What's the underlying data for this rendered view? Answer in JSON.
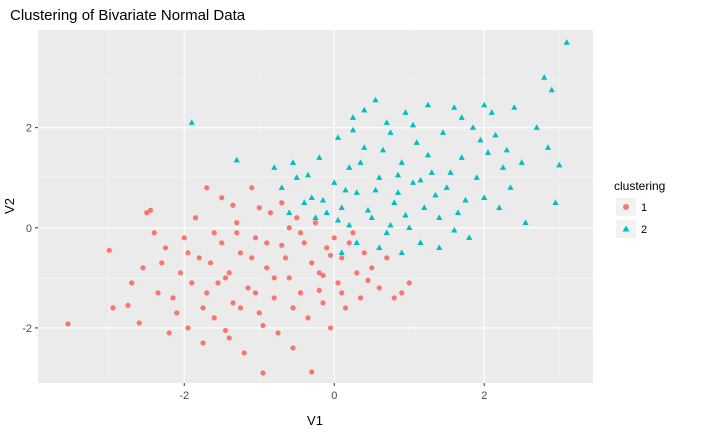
{
  "chart_data": {
    "type": "scatter",
    "title": "Clustering of Bivariate Normal Data",
    "xlabel": "V1",
    "ylabel": "V2",
    "xlim": [
      -3.95,
      3.45
    ],
    "ylim": [
      -3.1,
      3.95
    ],
    "x_ticks": [
      -2,
      0,
      2
    ],
    "y_ticks": [
      -2,
      0,
      2
    ],
    "x_tick_labels": [
      "-2",
      "0",
      "2"
    ],
    "y_tick_labels": [
      "-2",
      "0",
      "2"
    ],
    "grid": true,
    "legend": {
      "title": "clustering",
      "position": "right",
      "entries": [
        "1",
        "2"
      ]
    },
    "series": [
      {
        "name": "1",
        "color": "#f8766d",
        "marker": "circle",
        "points": [
          [
            -3.55,
            -1.92
          ],
          [
            -3.0,
            -0.45
          ],
          [
            -2.95,
            -1.6
          ],
          [
            -2.75,
            -1.55
          ],
          [
            -2.7,
            -1.1
          ],
          [
            -2.6,
            -1.9
          ],
          [
            -2.55,
            -0.8
          ],
          [
            -2.5,
            0.3
          ],
          [
            -2.45,
            0.35
          ],
          [
            -2.4,
            -0.1
          ],
          [
            -2.35,
            -1.3
          ],
          [
            -2.25,
            -0.4
          ],
          [
            -2.2,
            -2.1
          ],
          [
            -2.1,
            -1.7
          ],
          [
            -2.05,
            -0.9
          ],
          [
            -1.95,
            -2.0
          ],
          [
            -1.9,
            -1.1
          ],
          [
            -1.85,
            0.2
          ],
          [
            -1.8,
            -0.6
          ],
          [
            -1.75,
            -2.3
          ],
          [
            -1.7,
            -1.3
          ],
          [
            -1.65,
            -0.7
          ],
          [
            -1.6,
            -1.8
          ],
          [
            -1.5,
            0.6
          ],
          [
            -1.5,
            -0.3
          ],
          [
            -1.45,
            -1.0
          ],
          [
            -1.4,
            -2.2
          ],
          [
            -1.35,
            -1.5
          ],
          [
            -1.3,
            0.1
          ],
          [
            -1.25,
            -0.5
          ],
          [
            -1.2,
            -2.5
          ],
          [
            -1.15,
            -1.2
          ],
          [
            -1.1,
            0.8
          ],
          [
            -1.05,
            -0.2
          ],
          [
            -1.0,
            -1.7
          ],
          [
            -0.95,
            -2.9
          ],
          [
            -0.9,
            -0.8
          ],
          [
            -0.85,
            0.3
          ],
          [
            -0.8,
            -1.4
          ],
          [
            -0.75,
            -2.1
          ],
          [
            -0.7,
            0.5
          ],
          [
            -0.65,
            -0.6
          ],
          [
            -0.6,
            -1.0
          ],
          [
            -0.55,
            -2.4
          ],
          [
            -0.5,
            0.2
          ],
          [
            -0.45,
            -1.3
          ],
          [
            -0.4,
            -0.3
          ],
          [
            -0.35,
            -1.8
          ],
          [
            -0.3,
            -2.88
          ],
          [
            -0.25,
            0.1
          ],
          [
            -0.2,
            -0.9
          ],
          [
            -0.15,
            -1.5
          ],
          [
            -0.1,
            -0.4
          ],
          [
            -0.05,
            -2.0
          ],
          [
            0.0,
            -0.2
          ],
          [
            0.05,
            -1.1
          ],
          [
            0.1,
            -0.6
          ],
          [
            0.15,
            -1.6
          ],
          [
            0.2,
            -0.3
          ],
          [
            0.3,
            -0.9
          ],
          [
            0.35,
            -1.4
          ],
          [
            0.4,
            -0.5
          ],
          [
            0.5,
            -0.8
          ],
          [
            0.6,
            -1.2
          ],
          [
            0.7,
            -0.6
          ],
          [
            0.8,
            -1.4
          ],
          [
            0.9,
            -1.3
          ],
          [
            1.0,
            -1.1
          ],
          [
            -1.7,
            0.8
          ],
          [
            -2.0,
            -0.2
          ],
          [
            -1.3,
            -0.1
          ],
          [
            -0.6,
            0.0
          ],
          [
            0.25,
            -0.1
          ],
          [
            -0.9,
            -0.3
          ],
          [
            -1.1,
            -0.6
          ],
          [
            -1.4,
            -0.9
          ],
          [
            -0.3,
            -0.7
          ],
          [
            -2.15,
            -1.4
          ],
          [
            -1.55,
            -1.1
          ],
          [
            -0.8,
            -1.0
          ],
          [
            -0.45,
            -0.1
          ],
          [
            -1.0,
            0.4
          ],
          [
            -1.6,
            -0.1
          ],
          [
            -2.3,
            -0.7
          ],
          [
            -1.25,
            -1.6
          ],
          [
            -0.55,
            -1.6
          ],
          [
            0.1,
            -1.3
          ],
          [
            -0.15,
            -0.95
          ],
          [
            -1.95,
            -0.5
          ],
          [
            -1.35,
            0.45
          ],
          [
            -0.7,
            -0.35
          ],
          [
            -1.05,
            -1.3
          ],
          [
            -1.75,
            -1.6
          ],
          [
            -0.2,
            -1.25
          ],
          [
            -0.95,
            -1.95
          ],
          [
            -1.45,
            -2.05
          ],
          [
            0.45,
            -1.05
          ],
          [
            -0.05,
            -0.55
          ]
        ]
      },
      {
        "name": "2",
        "color": "#00bfc4",
        "marker": "triangle",
        "points": [
          [
            -1.9,
            2.1
          ],
          [
            -1.3,
            1.35
          ],
          [
            -0.8,
            1.2
          ],
          [
            -0.7,
            0.8
          ],
          [
            -0.5,
            1.0
          ],
          [
            -0.3,
            0.6
          ],
          [
            -0.2,
            1.4
          ],
          [
            -0.1,
            0.3
          ],
          [
            0.0,
            0.9
          ],
          [
            0.05,
            1.8
          ],
          [
            0.1,
            0.4
          ],
          [
            0.2,
            1.2
          ],
          [
            0.25,
            2.2
          ],
          [
            0.3,
            0.7
          ],
          [
            0.4,
            1.6
          ],
          [
            0.5,
            0.2
          ],
          [
            0.55,
            2.55
          ],
          [
            0.6,
            1.0
          ],
          [
            0.7,
            -0.1
          ],
          [
            0.75,
            1.9
          ],
          [
            0.8,
            0.5
          ],
          [
            0.9,
            1.3
          ],
          [
            0.95,
            2.3
          ],
          [
            1.0,
            0.0
          ],
          [
            1.05,
            0.9
          ],
          [
            1.1,
            1.7
          ],
          [
            1.2,
            0.4
          ],
          [
            1.25,
            2.45
          ],
          [
            1.3,
            1.1
          ],
          [
            1.4,
            0.2
          ],
          [
            1.45,
            1.9
          ],
          [
            1.5,
            0.8
          ],
          [
            1.6,
            2.4
          ],
          [
            1.65,
            0.3
          ],
          [
            1.7,
            1.4
          ],
          [
            1.8,
            -0.2
          ],
          [
            1.85,
            2.0
          ],
          [
            1.9,
            1.0
          ],
          [
            2.0,
            0.6
          ],
          [
            2.05,
            1.5
          ],
          [
            2.1,
            2.3
          ],
          [
            2.2,
            0.4
          ],
          [
            2.25,
            1.2
          ],
          [
            2.35,
            0.8
          ],
          [
            2.4,
            2.4
          ],
          [
            2.5,
            1.3
          ],
          [
            2.55,
            0.1
          ],
          [
            2.7,
            2.0
          ],
          [
            2.8,
            3.0
          ],
          [
            2.85,
            1.6
          ],
          [
            2.9,
            2.75
          ],
          [
            2.95,
            0.5
          ],
          [
            3.0,
            1.25
          ],
          [
            3.1,
            3.7
          ],
          [
            0.1,
            -0.5
          ],
          [
            0.3,
            -0.3
          ],
          [
            0.6,
            -0.4
          ],
          [
            0.9,
            -0.5
          ],
          [
            1.15,
            -0.3
          ],
          [
            1.4,
            -0.4
          ],
          [
            -0.4,
            0.5
          ],
          [
            -0.6,
            0.3
          ],
          [
            0.35,
            1.3
          ],
          [
            0.65,
            1.55
          ],
          [
            0.85,
            0.7
          ],
          [
            1.35,
            0.65
          ],
          [
            1.55,
            1.1
          ],
          [
            1.75,
            0.55
          ],
          [
            0.45,
            0.35
          ],
          [
            0.15,
            0.75
          ],
          [
            -0.15,
            0.55
          ],
          [
            1.95,
            1.75
          ],
          [
            2.15,
            1.85
          ],
          [
            0.25,
            1.95
          ],
          [
            1.05,
            2.05
          ],
          [
            0.7,
            2.1
          ],
          [
            -0.35,
            1.05
          ],
          [
            1.6,
            -0.05
          ],
          [
            2.3,
            1.55
          ],
          [
            1.25,
            1.45
          ],
          [
            0.95,
            0.25
          ],
          [
            0.55,
            0.75
          ],
          [
            0.05,
            0.15
          ],
          [
            -0.25,
            0.2
          ],
          [
            1.7,
            2.2
          ],
          [
            2.0,
            2.45
          ],
          [
            0.4,
            2.35
          ],
          [
            0.85,
            1.05
          ],
          [
            1.15,
            0.95
          ],
          [
            -0.55,
            1.3
          ],
          [
            0.2,
            0.05
          ],
          [
            0.75,
            0.05
          ]
        ]
      }
    ]
  }
}
